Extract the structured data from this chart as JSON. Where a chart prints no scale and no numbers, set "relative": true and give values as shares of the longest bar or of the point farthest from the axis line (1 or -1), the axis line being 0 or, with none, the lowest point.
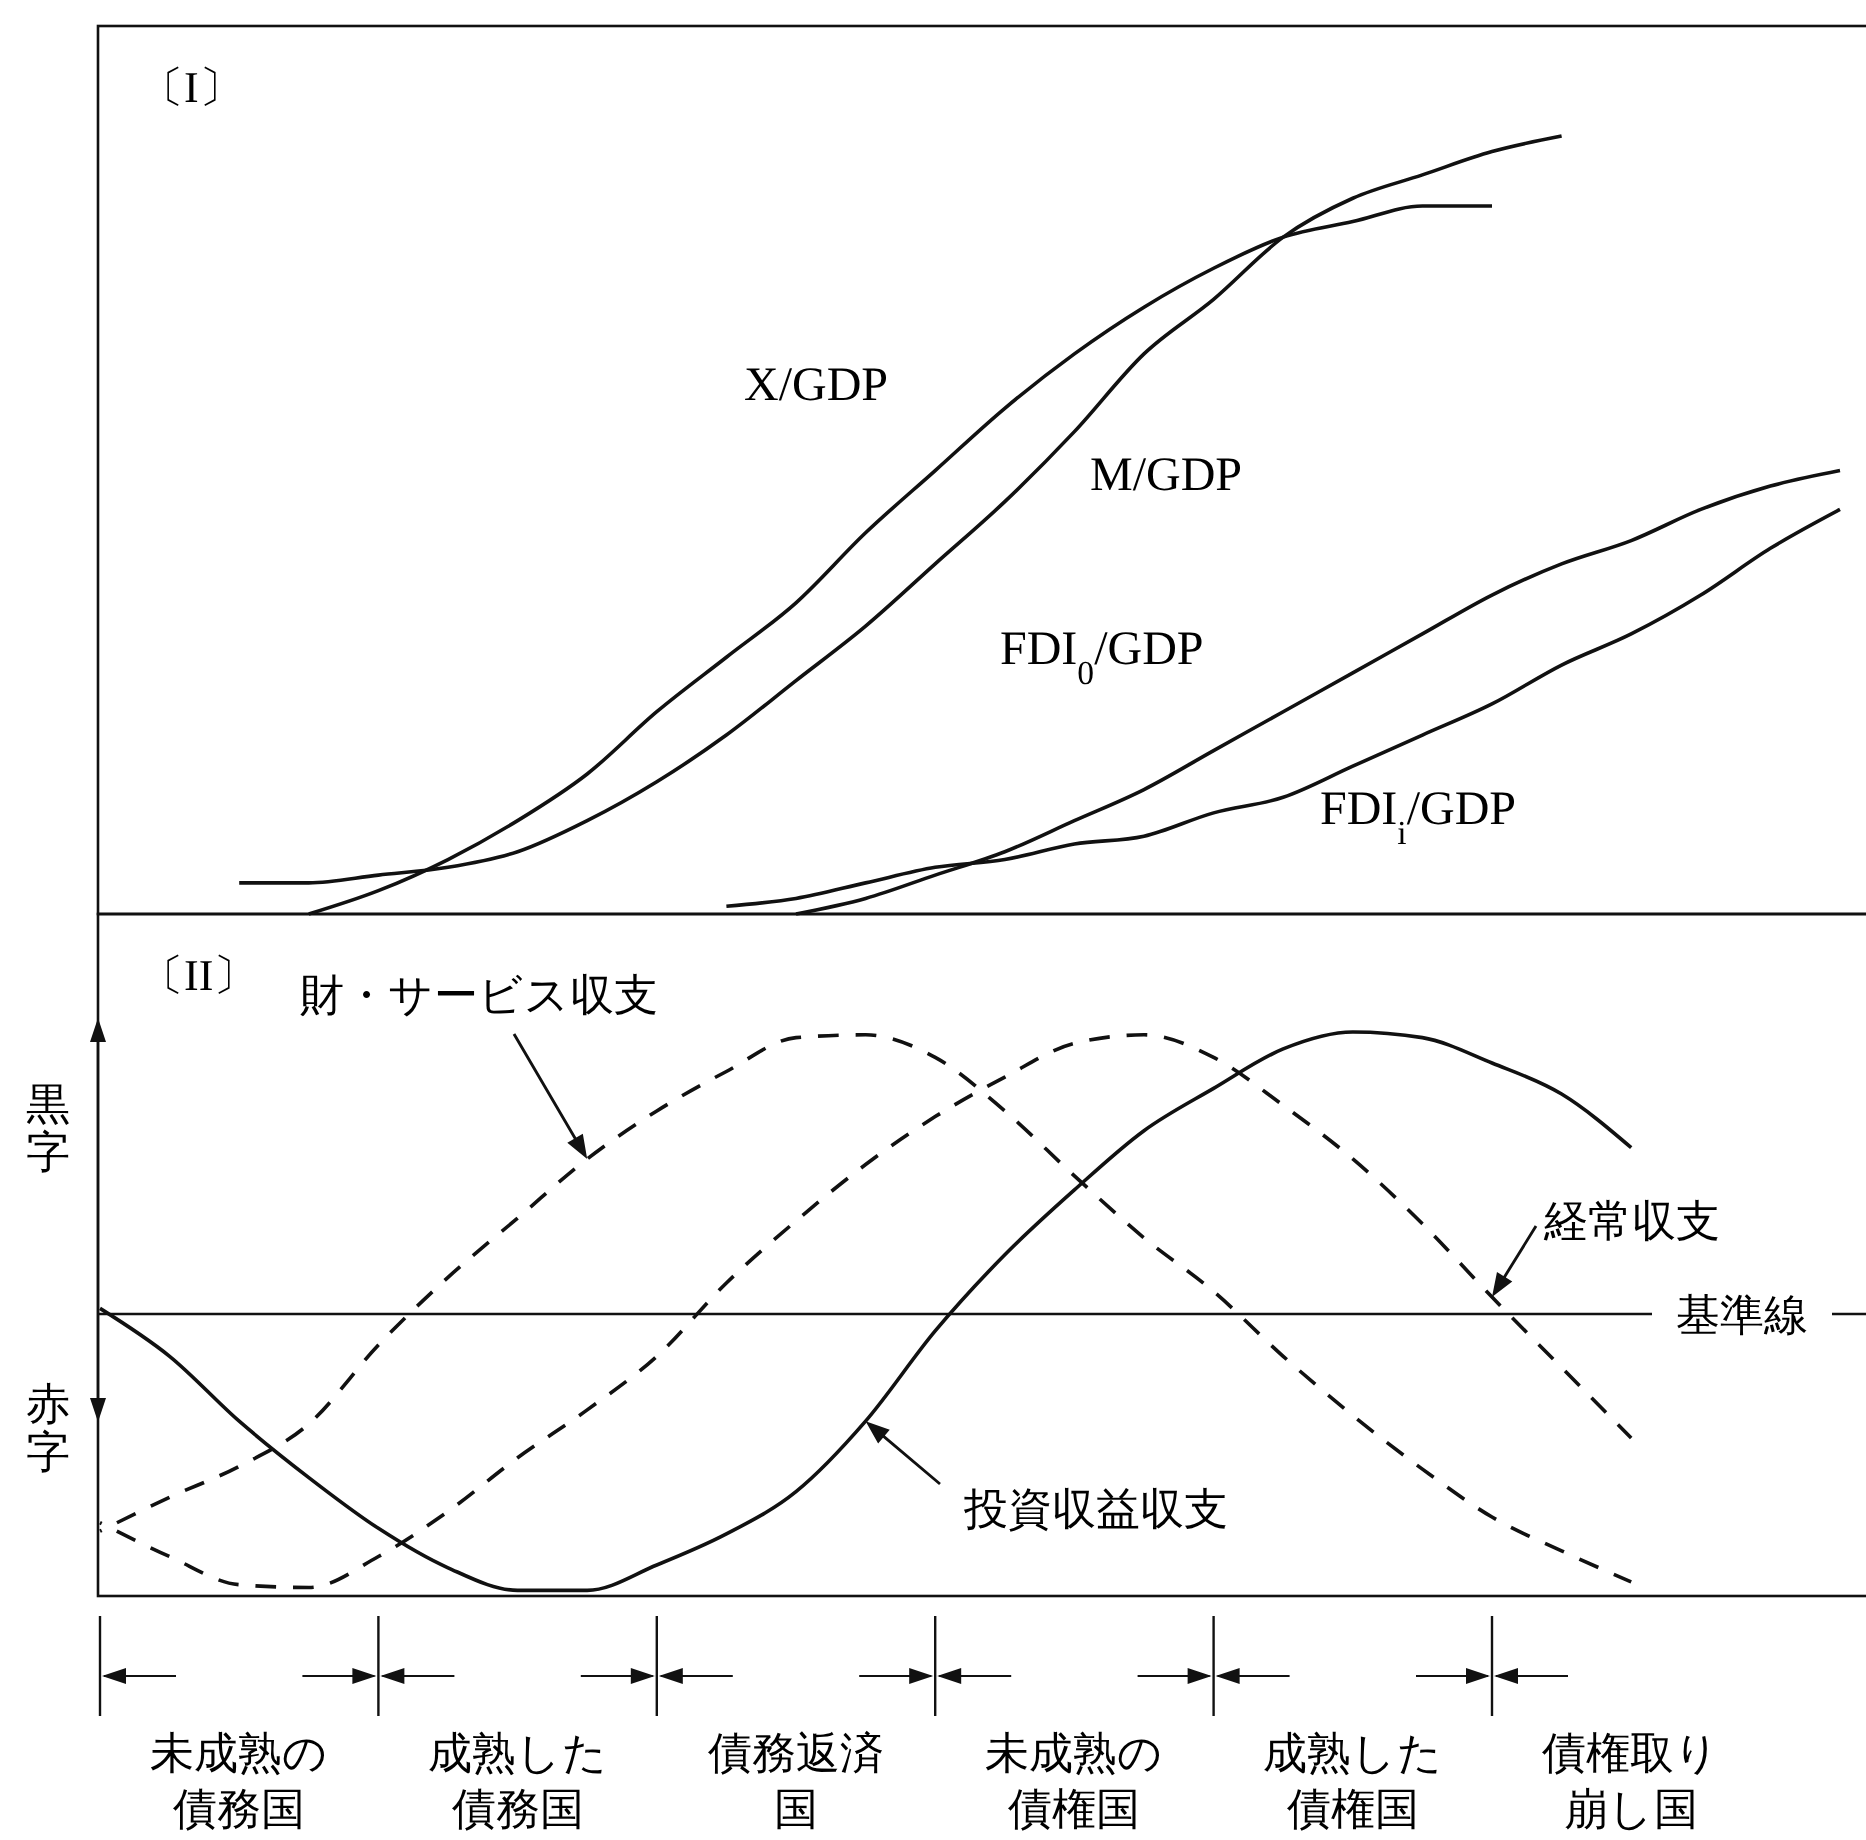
{
  "chart_data": [
    {
      "type": "line",
      "title": "〔I〕",
      "relative": true,
      "tick_labels": false,
      "categories": [
        null,
        null,
        null,
        null,
        null,
        null,
        null,
        null,
        null,
        null,
        null,
        null,
        null,
        null,
        null,
        null,
        null,
        null,
        null,
        null,
        null,
        null,
        null,
        null,
        null,
        null
      ],
      "series": [
        {
          "name": "X/GDP",
          "color": "#111111",
          "values": [
            null,
            null,
            null,
            0.0,
            0.03,
            0.07,
            0.12,
            0.18,
            0.26,
            0.33,
            0.4,
            0.49,
            0.57,
            0.65,
            0.72,
            0.78,
            0.83,
            0.87,
            0.89,
            0.91,
            0.91,
            null,
            null,
            null,
            null,
            null
          ]
        },
        {
          "name": "M/GDP",
          "color": "#111111",
          "values": [
            null,
            null,
            0.04,
            0.04,
            0.05,
            0.06,
            0.08,
            0.12,
            0.17,
            0.23,
            0.3,
            0.37,
            0.45,
            0.53,
            0.62,
            0.72,
            0.79,
            0.87,
            0.92,
            0.95,
            0.98,
            1.0,
            null,
            null,
            null,
            null
          ]
        },
        {
          "name": "FDI$_{0}$/GDP",
          "color": "#111111",
          "values": [
            null,
            null,
            null,
            null,
            null,
            null,
            null,
            null,
            null,
            null,
            0.0,
            0.02,
            0.05,
            0.08,
            0.12,
            0.16,
            0.21,
            0.26,
            0.31,
            0.36,
            0.41,
            0.45,
            0.48,
            0.52,
            0.55,
            0.57
          ]
        },
        {
          "name": "FDI$_{i}$/GDP",
          "color": "#111111",
          "values": [
            null,
            null,
            null,
            null,
            null,
            null,
            null,
            null,
            null,
            0.01,
            0.02,
            0.04,
            0.06,
            0.07,
            0.09,
            0.1,
            0.13,
            0.15,
            0.19,
            0.23,
            0.27,
            0.32,
            0.36,
            0.41,
            0.47,
            0.52
          ]
        }
      ]
    },
    {
      "type": "line",
      "title": "〔II〕",
      "relative": true,
      "tick_labels": "x",
      "categories": [
        null,
        null,
        "未成熟の債務国",
        null,
        null,
        null,
        "成熟した債務国",
        null,
        null,
        null,
        "債務返済国",
        null,
        null,
        null,
        "未成熟の債権国",
        null,
        null,
        null,
        "成熟した債権国",
        null,
        null,
        null,
        "債権取り崩し国",
        null,
        null,
        null
      ],
      "series": [
        {
          "name": "財・サービス収支",
          "color": "#111111",
          "line_style": "dashed",
          "values": [
            -0.77,
            -0.65,
            -0.54,
            -0.39,
            -0.11,
            0.13,
            0.34,
            0.55,
            0.72,
            0.86,
            0.98,
            0.99,
            0.91,
            0.72,
            0.49,
            0.27,
            0.08,
            -0.15,
            -0.36,
            -0.55,
            -0.72,
            -0.84,
            -0.95,
            null,
            null,
            null
          ]
        },
        {
          "name": "経常収支",
          "color": "#111111",
          "line_style": "dashed",
          "values": [
            -0.74,
            -0.86,
            -0.96,
            -0.97,
            -0.86,
            -0.7,
            -0.51,
            -0.34,
            -0.15,
            0.11,
            0.33,
            0.53,
            0.7,
            0.84,
            0.96,
            0.99,
            0.91,
            0.74,
            0.55,
            0.32,
            0.06,
            -0.19,
            -0.44,
            null,
            null,
            null
          ]
        },
        {
          "name": "投資収益収支",
          "color": "#111111",
          "line_style": "solid",
          "values": [
            0.02,
            -0.15,
            -0.38,
            -0.58,
            -0.76,
            -0.9,
            -0.98,
            -0.98,
            -0.89,
            -0.78,
            -0.63,
            -0.38,
            -0.06,
            0.21,
            0.44,
            0.65,
            0.8,
            0.94,
            1.0,
            0.98,
            0.89,
            0.78,
            0.59,
            null,
            null,
            null
          ]
        }
      ],
      "ref_lines": [
        {
          "axis": "y",
          "value": 0,
          "label": "基準線"
        }
      ],
      "annotations": [
        "黒字",
        "赤字"
      ]
    }
  ]
}
